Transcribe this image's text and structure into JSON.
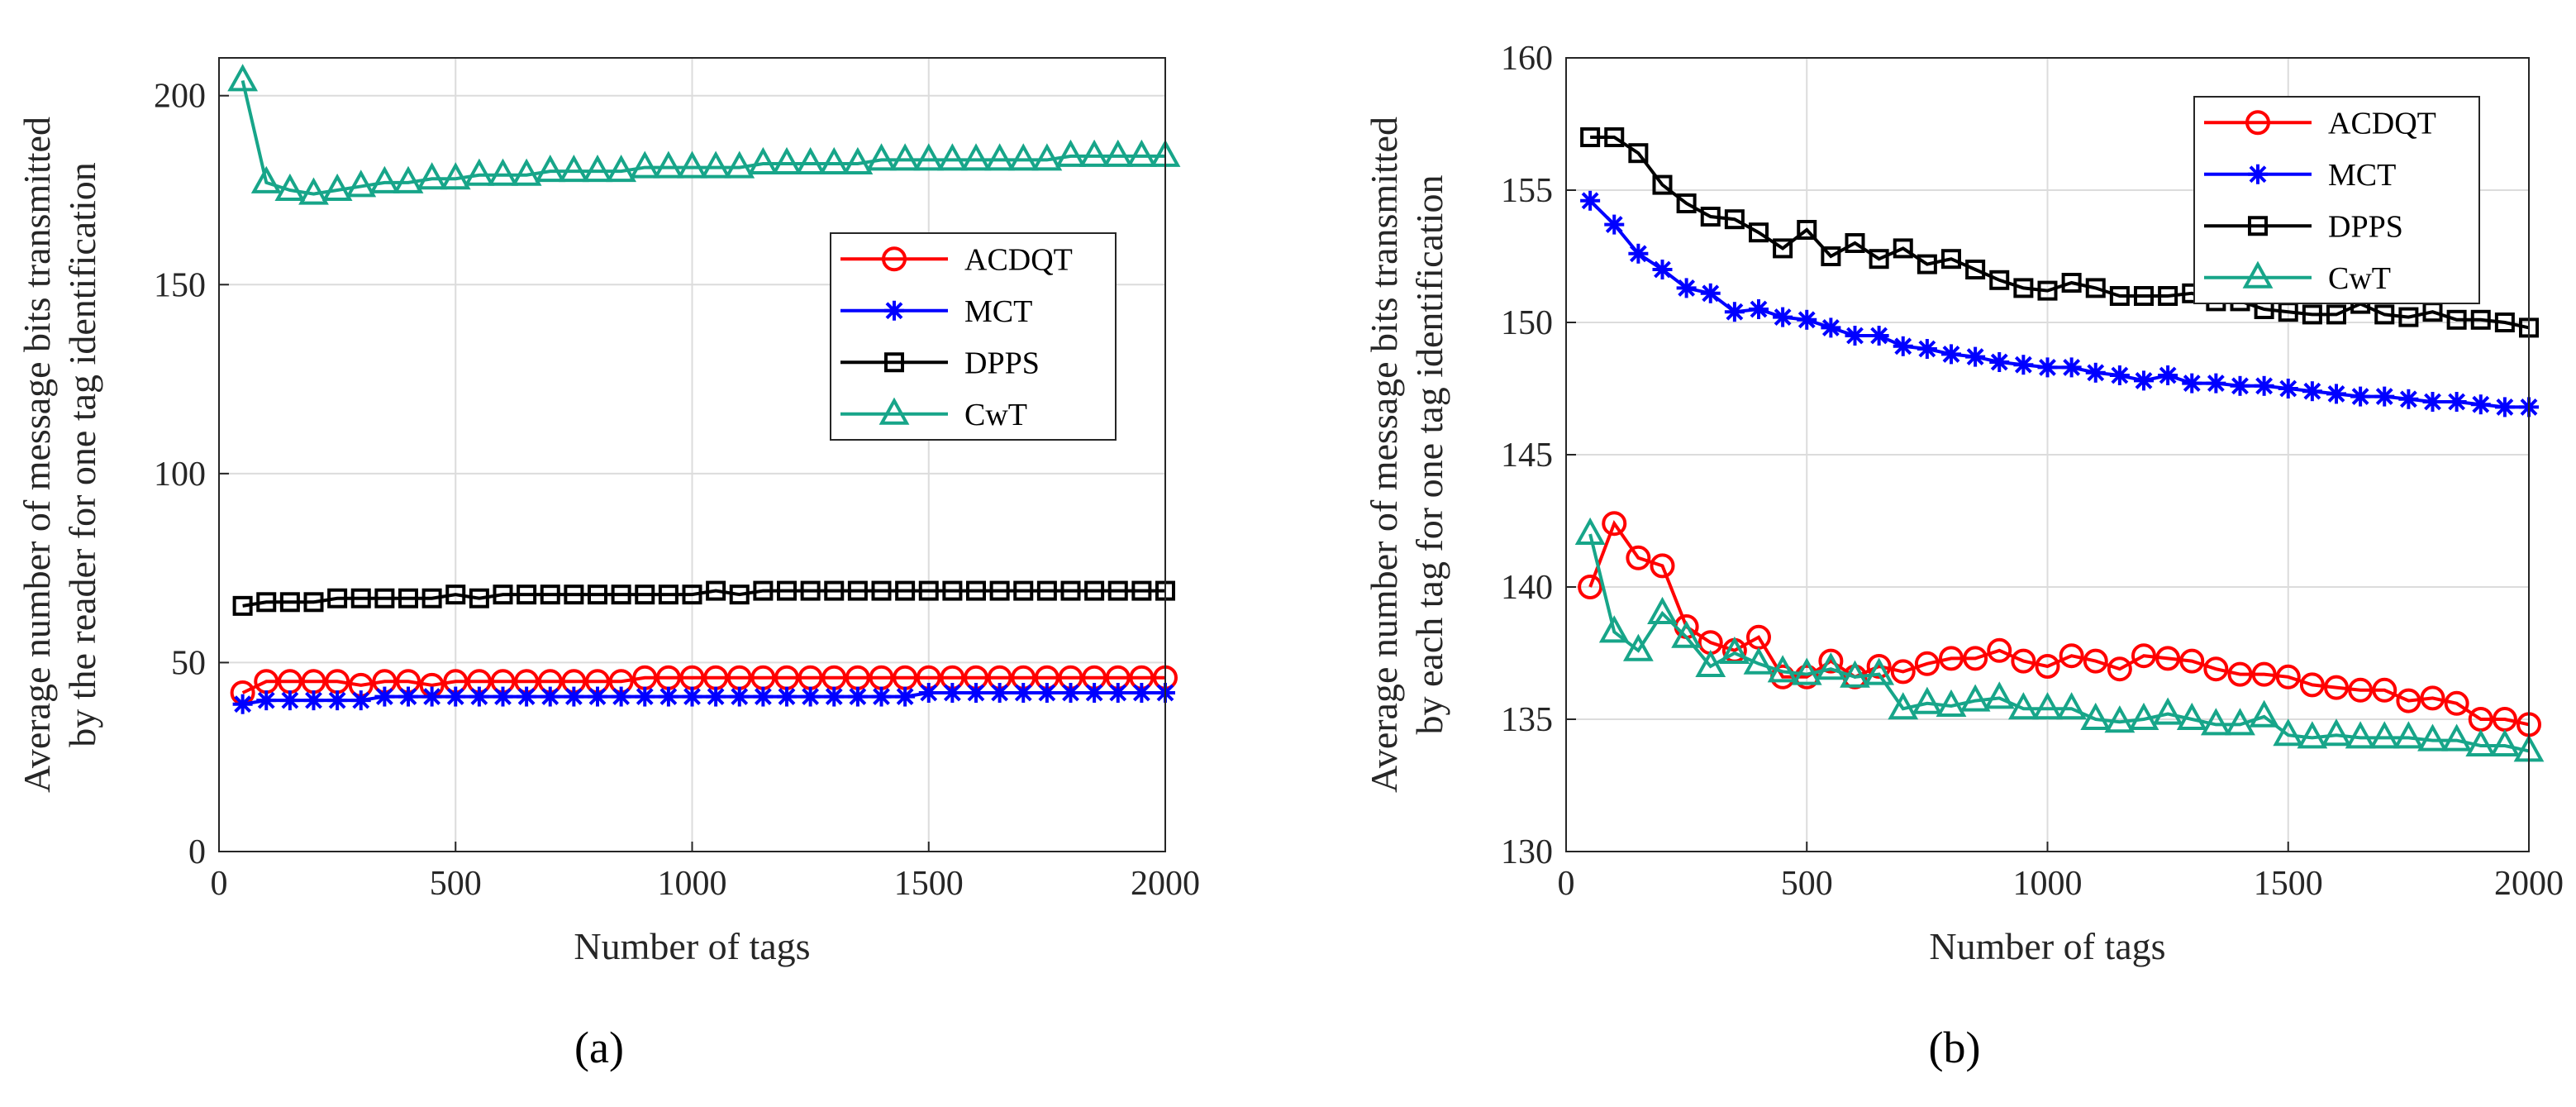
{
  "chart_data": [
    {
      "type": "line",
      "panel_caption": "(a)",
      "xlabel": "Number of tags",
      "ylabel_lines": [
        "Average number of message bits transmitted",
        "by the reader for one tag identification"
      ],
      "xlim": [
        0,
        2000
      ],
      "ylim": [
        0,
        210
      ],
      "xticks": [
        0,
        500,
        1000,
        1500,
        2000
      ],
      "yticks": [
        0,
        50,
        100,
        150,
        200
      ],
      "grid": true,
      "legend_position": "center-right",
      "x": [
        50,
        100,
        150,
        200,
        250,
        300,
        350,
        400,
        450,
        500,
        550,
        600,
        650,
        700,
        750,
        800,
        850,
        900,
        950,
        1000,
        1050,
        1100,
        1150,
        1200,
        1250,
        1300,
        1350,
        1400,
        1450,
        1500,
        1550,
        1600,
        1650,
        1700,
        1750,
        1800,
        1850,
        1900,
        1950,
        2000
      ],
      "series": [
        {
          "name": "ACDQT",
          "color": "#ff0000",
          "marker": "circle",
          "values": [
            42,
            45,
            45,
            45,
            45,
            44,
            45,
            45,
            44,
            45,
            45,
            45,
            45,
            45,
            45,
            45,
            45,
            46,
            46,
            46,
            46,
            46,
            46,
            46,
            46,
            46,
            46,
            46,
            46,
            46,
            46,
            46,
            46,
            46,
            46,
            46,
            46,
            46,
            46,
            46
          ]
        },
        {
          "name": "MCT",
          "color": "#0000ff",
          "marker": "star",
          "values": [
            39,
            40,
            40,
            40,
            40,
            40,
            41,
            41,
            41,
            41,
            41,
            41,
            41,
            41,
            41,
            41,
            41,
            41,
            41,
            41,
            41,
            41,
            41,
            41,
            41,
            41,
            41,
            41,
            41,
            42,
            42,
            42,
            42,
            42,
            42,
            42,
            42,
            42,
            42,
            42
          ]
        },
        {
          "name": "DPPS",
          "color": "#000000",
          "marker": "square",
          "values": [
            65,
            66,
            66,
            66,
            67,
            67,
            67,
            67,
            67,
            68,
            67,
            68,
            68,
            68,
            68,
            68,
            68,
            68,
            68,
            68,
            69,
            68,
            69,
            69,
            69,
            69,
            69,
            69,
            69,
            69,
            69,
            69,
            69,
            69,
            69,
            69,
            69,
            69,
            69,
            69
          ]
        },
        {
          "name": "CwT",
          "color": "#17a589",
          "marker": "triangle",
          "values": [
            204,
            177,
            175,
            174,
            175,
            176,
            177,
            177,
            178,
            178,
            179,
            179,
            179,
            180,
            180,
            180,
            180,
            181,
            181,
            181,
            181,
            181,
            182,
            182,
            182,
            182,
            182,
            183,
            183,
            183,
            183,
            183,
            183,
            183,
            183,
            184,
            184,
            184,
            184,
            184
          ]
        }
      ]
    },
    {
      "type": "line",
      "panel_caption": "(b)",
      "xlabel": "Number of tags",
      "ylabel_lines": [
        "Average number of message bits transmitted",
        "by each tag for one tag identification"
      ],
      "xlim": [
        0,
        2000
      ],
      "ylim": [
        130,
        160
      ],
      "xticks": [
        0,
        500,
        1000,
        1500,
        2000
      ],
      "yticks": [
        130,
        135,
        140,
        145,
        150,
        155,
        160
      ],
      "grid": true,
      "legend_position": "top-right",
      "x": [
        50,
        100,
        150,
        200,
        250,
        300,
        350,
        400,
        450,
        500,
        550,
        600,
        650,
        700,
        750,
        800,
        850,
        900,
        950,
        1000,
        1050,
        1100,
        1150,
        1200,
        1250,
        1300,
        1350,
        1400,
        1450,
        1500,
        1550,
        1600,
        1650,
        1700,
        1750,
        1800,
        1850,
        1900,
        1950,
        2000
      ],
      "series": [
        {
          "name": "ACDQT",
          "color": "#ff0000",
          "marker": "circle",
          "values": [
            140,
            142.4,
            141.1,
            140.8,
            138.5,
            137.9,
            137.6,
            138.1,
            136.6,
            136.6,
            137.2,
            136.6,
            137.0,
            136.8,
            137.1,
            137.3,
            137.3,
            137.6,
            137.2,
            137.0,
            137.4,
            137.2,
            136.9,
            137.4,
            137.3,
            137.2,
            136.9,
            136.7,
            136.7,
            136.6,
            136.3,
            136.2,
            136.1,
            136.1,
            135.7,
            135.8,
            135.6,
            135.0,
            135.0,
            134.8
          ]
        },
        {
          "name": "MCT",
          "color": "#0000ff",
          "marker": "star",
          "values": [
            154.6,
            153.7,
            152.6,
            152.0,
            151.3,
            151.1,
            150.4,
            150.5,
            150.2,
            150.1,
            149.8,
            149.5,
            149.5,
            149.1,
            149.0,
            148.8,
            148.7,
            148.5,
            148.4,
            148.3,
            148.3,
            148.1,
            148.0,
            147.8,
            148.0,
            147.7,
            147.7,
            147.6,
            147.6,
            147.5,
            147.4,
            147.3,
            147.2,
            147.2,
            147.1,
            147.0,
            147.0,
            146.9,
            146.8,
            146.8
          ]
        },
        {
          "name": "DPPS",
          "color": "#000000",
          "marker": "square",
          "values": [
            157.0,
            157.0,
            156.4,
            155.2,
            154.5,
            154.0,
            153.9,
            153.4,
            152.8,
            153.5,
            152.5,
            153.0,
            152.4,
            152.8,
            152.2,
            152.4,
            152.0,
            151.6,
            151.3,
            151.2,
            151.5,
            151.3,
            151.0,
            151.0,
            151.0,
            151.1,
            150.8,
            150.8,
            150.5,
            150.4,
            150.3,
            150.3,
            150.7,
            150.3,
            150.2,
            150.4,
            150.1,
            150.1,
            150.0,
            149.8
          ]
        },
        {
          "name": "CwT",
          "color": "#17a589",
          "marker": "triangle",
          "values": [
            142,
            138.3,
            137.6,
            139.0,
            138.1,
            137.0,
            137.5,
            137.1,
            136.8,
            136.7,
            136.9,
            136.6,
            136.7,
            135.4,
            135.6,
            135.5,
            135.7,
            135.8,
            135.4,
            135.4,
            135.4,
            135.0,
            134.9,
            135.0,
            135.2,
            135.0,
            134.8,
            134.8,
            135.1,
            134.4,
            134.3,
            134.4,
            134.3,
            134.3,
            134.3,
            134.2,
            134.2,
            134.0,
            134.0,
            133.8
          ]
        }
      ]
    }
  ]
}
